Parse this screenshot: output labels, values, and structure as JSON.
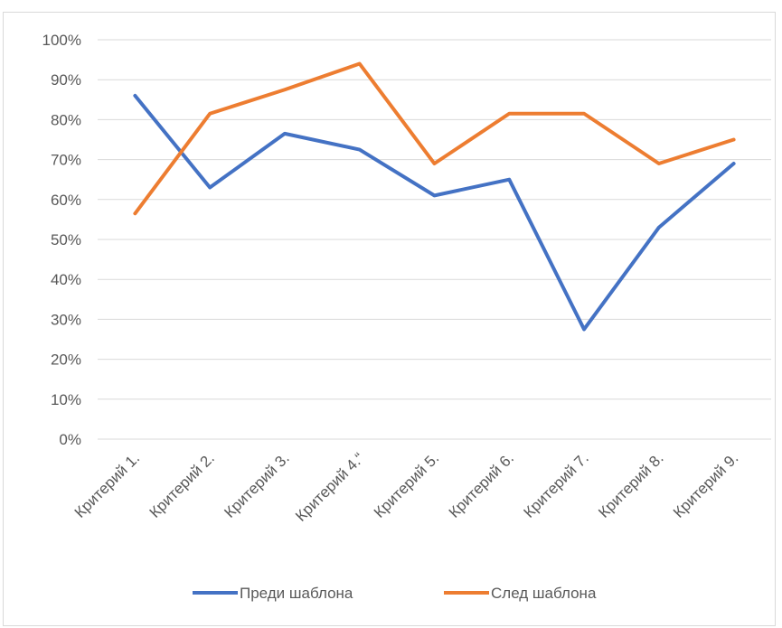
{
  "chart_data": {
    "type": "line",
    "title": "",
    "xlabel": "",
    "ylabel": "",
    "categories": [
      "Критерий 1.",
      "Критерий 2.",
      "Критерий 3.",
      "Критерий 4.“",
      "Критерий 5.",
      "Критерий 6.",
      "Критерий 7.",
      "Критерий 8.",
      "Критерий 9."
    ],
    "y_ticks": [
      "0%",
      "10%",
      "20%",
      "30%",
      "40%",
      "50%",
      "60%",
      "70%",
      "80%",
      "90%",
      "100%"
    ],
    "ylim": [
      0,
      1
    ],
    "grid": true,
    "legend_position": "bottom",
    "series": [
      {
        "name": "Преди шаблона",
        "color": "#4472c4",
        "values": [
          0.86,
          0.63,
          0.765,
          0.725,
          0.61,
          0.65,
          0.275,
          0.53,
          0.69
        ]
      },
      {
        "name": "След шаблона",
        "color": "#ed7d31",
        "values": [
          0.565,
          0.815,
          0.875,
          0.94,
          0.69,
          0.815,
          0.815,
          0.69,
          0.75
        ]
      }
    ]
  }
}
